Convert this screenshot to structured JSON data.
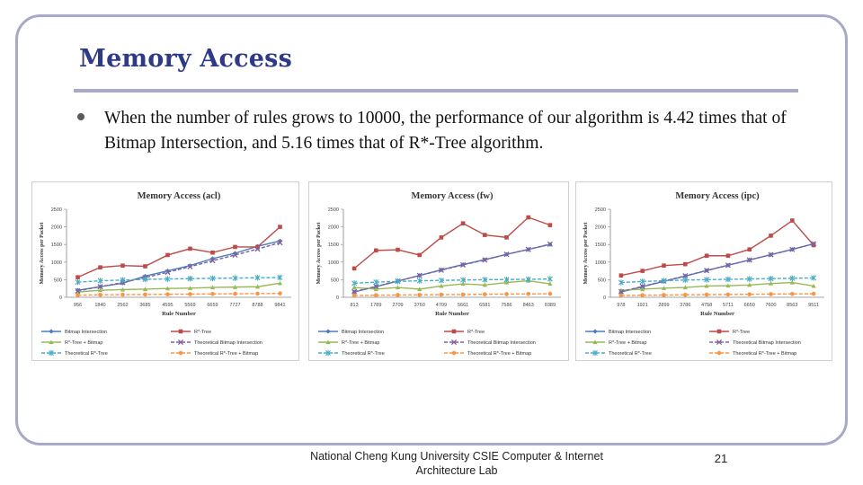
{
  "slide": {
    "title": "Memory Access",
    "bullet": "When the number of rules grows to 10000, the performance of our algorithm is 4.42 times that of Bitmap Intersection, and 5.16 times that of R*-Tree algorithm.",
    "footer": "National Cheng Kung University CSIE Computer & Internet Architecture Lab",
    "page_number": "21",
    "frame_color": "#a7a9c9",
    "title_color": "#2e3a86"
  },
  "chart_data": [
    {
      "type": "line",
      "title": "Memory Access (acl)",
      "xlabel": "Rule Number",
      "ylabel": "Memory Access per Packet",
      "categories": [
        "956",
        "1840",
        "2562",
        "3685",
        "4595",
        "5569",
        "6659",
        "7727",
        "8788",
        "9841"
      ],
      "ylim": [
        0,
        2500
      ],
      "yticks": [
        "0",
        "500",
        "1000",
        "1500",
        "2000",
        "2500"
      ],
      "grid": false,
      "legend": "bottom",
      "series": [
        {
          "name": "Bitmap Intersection",
          "color": "#4a7ebb",
          "marker": "diamond",
          "dash": "solid",
          "values": [
            200,
            300,
            400,
            600,
            750,
            900,
            1100,
            1250,
            1450,
            1600
          ]
        },
        {
          "name": "R*-Tree",
          "color": "#be4b48",
          "marker": "square",
          "dash": "solid",
          "values": [
            570,
            850,
            900,
            880,
            1200,
            1380,
            1270,
            1430,
            1430,
            2000
          ]
        },
        {
          "name": "R*-Tree + Bitmap",
          "color": "#98b954",
          "marker": "triangle",
          "dash": "solid",
          "values": [
            150,
            200,
            220,
            230,
            250,
            260,
            280,
            290,
            300,
            400
          ]
        },
        {
          "name": "Theoretical Bitmap Intersection",
          "color": "#7e62a1",
          "marker": "x",
          "dash": "dash",
          "values": [
            180,
            300,
            420,
            560,
            710,
            870,
            1040,
            1200,
            1370,
            1550
          ]
        },
        {
          "name": "Theoretical R*-Tree",
          "color": "#4bacc6",
          "marker": "star",
          "dash": "dash",
          "values": [
            430,
            470,
            490,
            510,
            520,
            530,
            540,
            545,
            555,
            560
          ]
        },
        {
          "name": "Theoretical R*-Tree + Bitmap",
          "color": "#f79646",
          "marker": "circle",
          "dash": "dash",
          "values": [
            60,
            70,
            75,
            80,
            85,
            90,
            95,
            100,
            105,
            110
          ]
        }
      ]
    },
    {
      "type": "line",
      "title": "Memory Access (fw)",
      "xlabel": "Rule Number",
      "ylabel": "Memory Access per Packet",
      "categories": [
        "813",
        "1789",
        "2709",
        "3760",
        "4709",
        "5661",
        "6581",
        "7586",
        "8463",
        "9389"
      ],
      "ylim": [
        0,
        2500
      ],
      "yticks": [
        "0",
        "500",
        "1000",
        "1500",
        "2000",
        "2500"
      ],
      "grid": false,
      "legend": "bottom",
      "series": [
        {
          "name": "Bitmap Intersection",
          "color": "#4a7ebb",
          "marker": "diamond",
          "dash": "solid",
          "values": [
            150,
            300,
            460,
            620,
            780,
            930,
            1070,
            1220,
            1360,
            1500
          ]
        },
        {
          "name": "R*-Tree",
          "color": "#be4b48",
          "marker": "square",
          "dash": "solid",
          "values": [
            820,
            1330,
            1350,
            1200,
            1700,
            2100,
            1770,
            1700,
            2270,
            2050
          ]
        },
        {
          "name": "R*-Tree + Bitmap",
          "color": "#98b954",
          "marker": "triangle",
          "dash": "solid",
          "values": [
            280,
            230,
            280,
            230,
            320,
            380,
            350,
            420,
            470,
            380
          ]
        },
        {
          "name": "Theoretical Bitmap Intersection",
          "color": "#7e62a1",
          "marker": "x",
          "dash": "dash",
          "values": [
            160,
            310,
            460,
            620,
            770,
            920,
            1060,
            1220,
            1360,
            1510
          ]
        },
        {
          "name": "Theoretical R*-Tree",
          "color": "#4bacc6",
          "marker": "star",
          "dash": "dash",
          "values": [
            400,
            430,
            450,
            470,
            480,
            490,
            500,
            505,
            510,
            520
          ]
        },
        {
          "name": "Theoretical R*-Tree + Bitmap",
          "color": "#f79646",
          "marker": "circle",
          "dash": "dash",
          "values": [
            50,
            60,
            65,
            70,
            75,
            80,
            85,
            90,
            95,
            100
          ]
        }
      ]
    },
    {
      "type": "line",
      "title": "Memory Access (ipc)",
      "xlabel": "Rule Number",
      "ylabel": "Memory Access per Packet",
      "categories": [
        "978",
        "1921",
        "2899",
        "3786",
        "4758",
        "5711",
        "6650",
        "7600",
        "8563",
        "9511"
      ],
      "ylim": [
        0,
        2500
      ],
      "yticks": [
        "0",
        "500",
        "1000",
        "1500",
        "2000",
        "2500"
      ],
      "grid": false,
      "legend": "bottom",
      "series": [
        {
          "name": "Bitmap Intersection",
          "color": "#4a7ebb",
          "marker": "diamond",
          "dash": "solid",
          "values": [
            150,
            300,
            450,
            600,
            760,
            910,
            1060,
            1210,
            1360,
            1520
          ]
        },
        {
          "name": "R*-Tree",
          "color": "#be4b48",
          "marker": "square",
          "dash": "solid",
          "values": [
            620,
            750,
            900,
            940,
            1180,
            1180,
            1360,
            1750,
            2180,
            1480
          ]
        },
        {
          "name": "R*-Tree + Bitmap",
          "color": "#98b954",
          "marker": "triangle",
          "dash": "solid",
          "values": [
            200,
            230,
            260,
            280,
            320,
            330,
            350,
            390,
            420,
            320
          ]
        },
        {
          "name": "Theoretical Bitmap Intersection",
          "color": "#7e62a1",
          "marker": "x",
          "dash": "dash",
          "values": [
            160,
            310,
            460,
            610,
            760,
            910,
            1060,
            1210,
            1360,
            1520
          ]
        },
        {
          "name": "Theoretical R*-Tree",
          "color": "#4bacc6",
          "marker": "star",
          "dash": "dash",
          "values": [
            420,
            450,
            470,
            490,
            500,
            510,
            520,
            530,
            540,
            550
          ]
        },
        {
          "name": "Theoretical R*-Tree + Bitmap",
          "color": "#f79646",
          "marker": "circle",
          "dash": "dash",
          "values": [
            50,
            60,
            65,
            70,
            75,
            80,
            85,
            90,
            95,
            100
          ]
        }
      ]
    }
  ]
}
